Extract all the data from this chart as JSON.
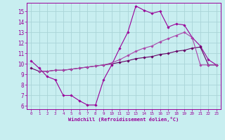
{
  "bg_color": "#c8eef0",
  "grid_color": "#aad4d8",
  "line_color": "#990099",
  "xlabel": "Windchill (Refroidissement éolien,°C)",
  "xlim": [
    -0.5,
    23.5
  ],
  "ylim": [
    5.7,
    15.8
  ],
  "yticks": [
    6,
    7,
    8,
    9,
    10,
    11,
    12,
    13,
    14,
    15
  ],
  "xticks": [
    0,
    1,
    2,
    3,
    4,
    5,
    6,
    7,
    8,
    9,
    10,
    11,
    12,
    13,
    14,
    15,
    16,
    17,
    18,
    19,
    20,
    21,
    22,
    23
  ],
  "line1_x": [
    0,
    1,
    2,
    3,
    4,
    5,
    6,
    7,
    8,
    9,
    10,
    11,
    12,
    13,
    14,
    15,
    16,
    17,
    18,
    19,
    20,
    21,
    22,
    23
  ],
  "line1_y": [
    10.3,
    9.6,
    8.8,
    8.5,
    7.0,
    7.0,
    6.5,
    6.1,
    6.1,
    8.5,
    9.9,
    11.5,
    13.0,
    15.5,
    15.1,
    14.8,
    15.0,
    13.5,
    13.8,
    13.7,
    12.5,
    11.7,
    10.4,
    9.9
  ],
  "line2_x": [
    0,
    1,
    2,
    3,
    4,
    5,
    6,
    7,
    8,
    9,
    10,
    11,
    12,
    13,
    14,
    15,
    16,
    17,
    18,
    19,
    20,
    21,
    22,
    23
  ],
  "line2_y": [
    9.6,
    9.3,
    9.3,
    9.4,
    9.4,
    9.5,
    9.6,
    9.7,
    9.8,
    9.9,
    10.0,
    10.15,
    10.3,
    10.5,
    10.6,
    10.7,
    10.9,
    11.0,
    11.2,
    11.3,
    11.5,
    11.6,
    9.9,
    9.9
  ],
  "line3_x": [
    1,
    2,
    3,
    4,
    5,
    6,
    7,
    8,
    9,
    10,
    11,
    12,
    13,
    14,
    15,
    16,
    17,
    18,
    19,
    20,
    21,
    22,
    23
  ],
  "line3_y": [
    9.3,
    9.3,
    9.4,
    9.4,
    9.5,
    9.6,
    9.7,
    9.8,
    9.9,
    10.1,
    10.4,
    10.8,
    11.2,
    11.5,
    11.7,
    12.1,
    12.4,
    12.7,
    13.0,
    12.5,
    9.9,
    9.9,
    9.9
  ]
}
